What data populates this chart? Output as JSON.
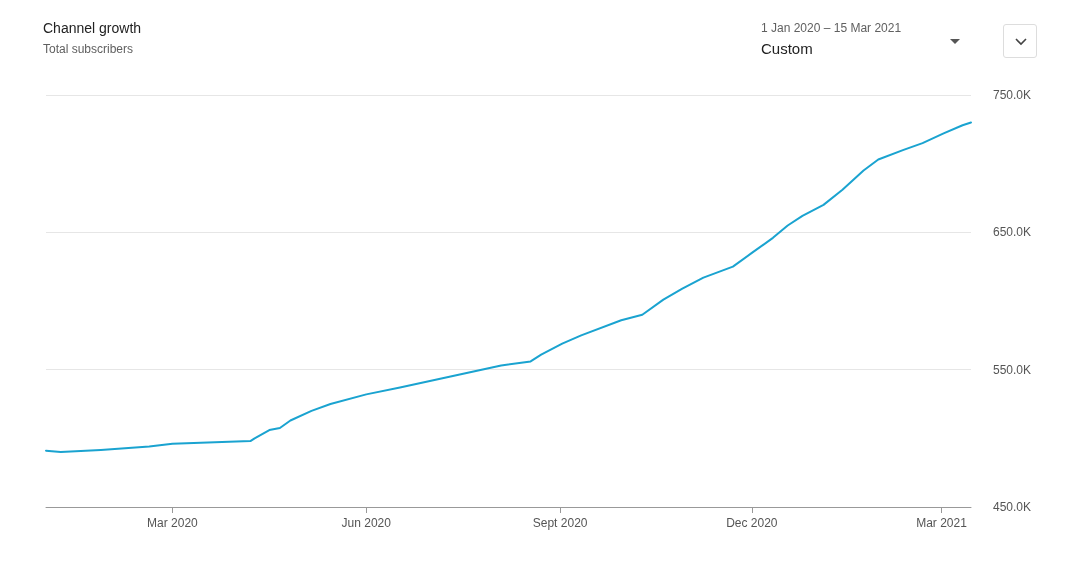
{
  "chart_data": {
    "type": "line",
    "title": "Channel growth",
    "subtitle": "Total subscribers",
    "annotations": [
      "1 Jan 2020 – 15 Mar 2021",
      "Custom"
    ],
    "x": [
      "2020-01-01",
      "2020-01-08",
      "2020-01-27",
      "2020-02-19",
      "2020-03-01",
      "2020-04-07",
      "2020-04-09",
      "2020-04-16",
      "2020-04-21",
      "2020-04-26",
      "2020-05-06",
      "2020-05-15",
      "2020-06-01",
      "2020-06-17",
      "2020-07-11",
      "2020-08-04",
      "2020-08-18",
      "2020-08-23",
      "2020-09-02",
      "2020-09-11",
      "2020-09-30",
      "2020-10-10",
      "2020-10-20",
      "2020-10-29",
      "2020-11-08",
      "2020-11-22",
      "2020-12-01",
      "2020-12-11",
      "2020-12-18",
      "2020-12-25",
      "2021-01-04",
      "2021-01-13",
      "2021-01-23",
      "2021-01-30",
      "2021-02-11",
      "2021-02-20",
      "2021-03-02",
      "2021-03-11",
      "2021-03-15"
    ],
    "series": [
      {
        "color": "#1aa3d0",
        "values": [
          491,
          490,
          491.5,
          494,
          496,
          498,
          500,
          506,
          507.5,
          513,
          520,
          525,
          532,
          537,
          545,
          553,
          556,
          561,
          569,
          575,
          586,
          590,
          601,
          609,
          617,
          625,
          635,
          646,
          655,
          662,
          670,
          681,
          695,
          703,
          710,
          715,
          722,
          728,
          730
        ]
      }
    ],
    "xlim": [
      "2020-01-01",
      "2021-03-15"
    ],
    "xticks": [
      {
        "value": "2020-03-01",
        "label": "Mar 2020"
      },
      {
        "value": "2020-06-01",
        "label": "Jun 2020"
      },
      {
        "value": "2020-09-01",
        "label": "Sept 2020"
      },
      {
        "value": "2020-12-01",
        "label": "Dec 2020"
      },
      {
        "value": "2021-03-01",
        "label": "Mar 2021"
      }
    ],
    "ylim": [
      450,
      750
    ],
    "yticks": [
      {
        "value": 450,
        "label": "450.0K"
      },
      {
        "value": 550,
        "label": "550.0K"
      },
      {
        "value": 650,
        "label": "650.0K"
      },
      {
        "value": 750,
        "label": "750.0K"
      }
    ],
    "grid": "y",
    "marker": "none",
    "line_style": "solid"
  }
}
